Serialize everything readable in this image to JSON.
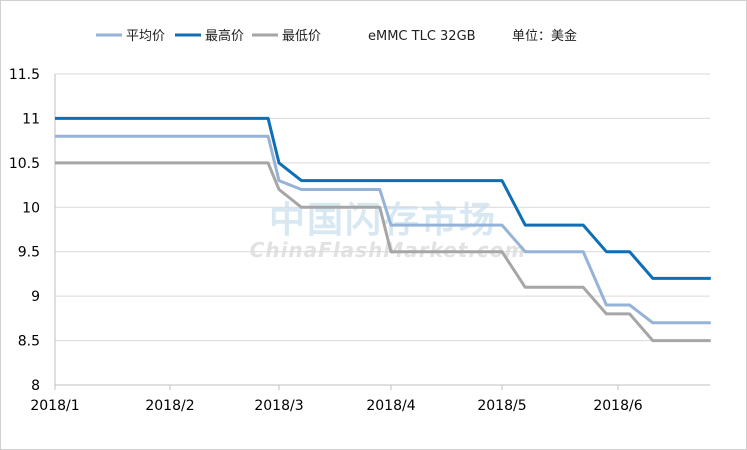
{
  "chart_data": {
    "type": "line",
    "xlabel": "",
    "ylabel": "",
    "ylim": [
      8,
      11.5
    ],
    "yticks": [
      "8",
      "8.5",
      "9",
      "9.5",
      "10",
      "10.5",
      "11",
      "11.5"
    ],
    "xticks": [
      "2018/1",
      "2018/2",
      "2018/3",
      "2018/4",
      "2018/5",
      "2018/6"
    ],
    "grid": "horizontal",
    "legend_position": "top",
    "product_note": "eMMC TLC 32GB",
    "unit_note": "单位：美金",
    "watermark": {
      "cn": "中国闪存市场",
      "en": "ChinaFlashMarket.com"
    },
    "series": [
      {
        "name": "平均价",
        "color": "#95b3d7",
        "points": [
          [
            "2018/1",
            10.8
          ],
          [
            "2018/2",
            10.8
          ],
          [
            "2018/2.9",
            10.8
          ],
          [
            "2018/3",
            10.3
          ],
          [
            "2018/3.2",
            10.2
          ],
          [
            "2018/3.9",
            10.2
          ],
          [
            "2018/4",
            9.8
          ],
          [
            "2018/5",
            9.8
          ],
          [
            "2018/5.2",
            9.5
          ],
          [
            "2018/5.7",
            9.5
          ],
          [
            "2018/5.9",
            8.9
          ],
          [
            "2018/6.1",
            8.9
          ],
          [
            "2018/6.3",
            8.7
          ],
          [
            "2018/6.8",
            8.7
          ]
        ]
      },
      {
        "name": "最高价",
        "color": "#0f6fb6",
        "points": [
          [
            "2018/1",
            11.0
          ],
          [
            "2018/2",
            11.0
          ],
          [
            "2018/2.9",
            11.0
          ],
          [
            "2018/3",
            10.5
          ],
          [
            "2018/3.2",
            10.3
          ],
          [
            "2018/3.9",
            10.3
          ],
          [
            "2018/4",
            10.3
          ],
          [
            "2018/5",
            10.3
          ],
          [
            "2018/5.2",
            9.8
          ],
          [
            "2018/5.7",
            9.8
          ],
          [
            "2018/5.9",
            9.5
          ],
          [
            "2018/6.1",
            9.5
          ],
          [
            "2018/6.3",
            9.2
          ],
          [
            "2018/6.8",
            9.2
          ]
        ]
      },
      {
        "name": "最低价",
        "color": "#a6a6a6",
        "points": [
          [
            "2018/1",
            10.5
          ],
          [
            "2018/2",
            10.5
          ],
          [
            "2018/2.9",
            10.5
          ],
          [
            "2018/3",
            10.2
          ],
          [
            "2018/3.2",
            10.0
          ],
          [
            "2018/3.9",
            10.0
          ],
          [
            "2018/4",
            9.5
          ],
          [
            "2018/5",
            9.5
          ],
          [
            "2018/5.2",
            9.1
          ],
          [
            "2018/5.7",
            9.1
          ],
          [
            "2018/5.9",
            8.8
          ],
          [
            "2018/6.1",
            8.8
          ],
          [
            "2018/6.3",
            8.5
          ],
          [
            "2018/6.8",
            8.5
          ]
        ]
      }
    ]
  }
}
